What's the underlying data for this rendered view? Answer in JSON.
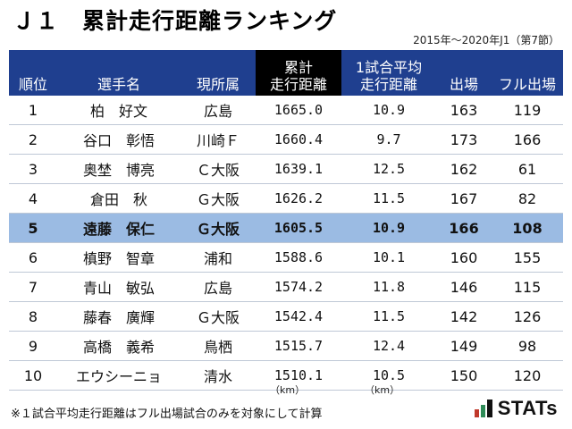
{
  "title": "Ｊ１　累計走行距離ランキング",
  "period": "2015年〜2020年J1（第7節）",
  "columns": {
    "rank": "順位",
    "player": "選手名",
    "club": "現所属",
    "total_line1": "累計",
    "total_line2": "走行距離",
    "avg_line1": "1試合平均",
    "avg_line2": "走行距離",
    "apps": "出場",
    "full": "フル出場"
  },
  "rows": [
    {
      "rank": "1",
      "player": "柏　好文",
      "club": "広島",
      "total": "1665.0",
      "avg": "10.9",
      "apps": "163",
      "full": "119"
    },
    {
      "rank": "2",
      "player": "谷口　彰悟",
      "club": "川崎Ｆ",
      "total": "1660.4",
      "avg": "9.7",
      "apps": "173",
      "full": "166"
    },
    {
      "rank": "3",
      "player": "奥埜　博亮",
      "club": "Ｃ大阪",
      "total": "1639.1",
      "avg": "12.5",
      "apps": "162",
      "full": "61"
    },
    {
      "rank": "4",
      "player": "倉田　秋",
      "club": "Ｇ大阪",
      "total": "1626.2",
      "avg": "11.5",
      "apps": "167",
      "full": "82"
    },
    {
      "rank": "5",
      "player": "遠藤　保仁",
      "club": "Ｇ大阪",
      "total": "1605.5",
      "avg": "10.9",
      "apps": "166",
      "full": "108"
    },
    {
      "rank": "6",
      "player": "槙野　智章",
      "club": "浦和",
      "total": "1588.6",
      "avg": "10.1",
      "apps": "160",
      "full": "155"
    },
    {
      "rank": "7",
      "player": "青山　敏弘",
      "club": "広島",
      "total": "1574.2",
      "avg": "11.8",
      "apps": "146",
      "full": "115"
    },
    {
      "rank": "8",
      "player": "藤春　廣輝",
      "club": "Ｇ大阪",
      "total": "1542.4",
      "avg": "11.5",
      "apps": "142",
      "full": "126"
    },
    {
      "rank": "9",
      "player": "高橋　義希",
      "club": "鳥栖",
      "total": "1515.7",
      "avg": "12.4",
      "apps": "149",
      "full": "98"
    },
    {
      "rank": "10",
      "player": "エウシーニョ",
      "club": "清水",
      "total": "1510.1",
      "avg": "10.5",
      "apps": "150",
      "full": "120"
    }
  ],
  "highlight_color": "#9bbbe3",
  "header_color": "#1f3f8f",
  "units": {
    "total": "（km）",
    "avg": "（km）"
  },
  "footnote": "※１試合平均走行距離はフル出場試合のみを対象にして計算",
  "logo": {
    "text": "STATs"
  }
}
